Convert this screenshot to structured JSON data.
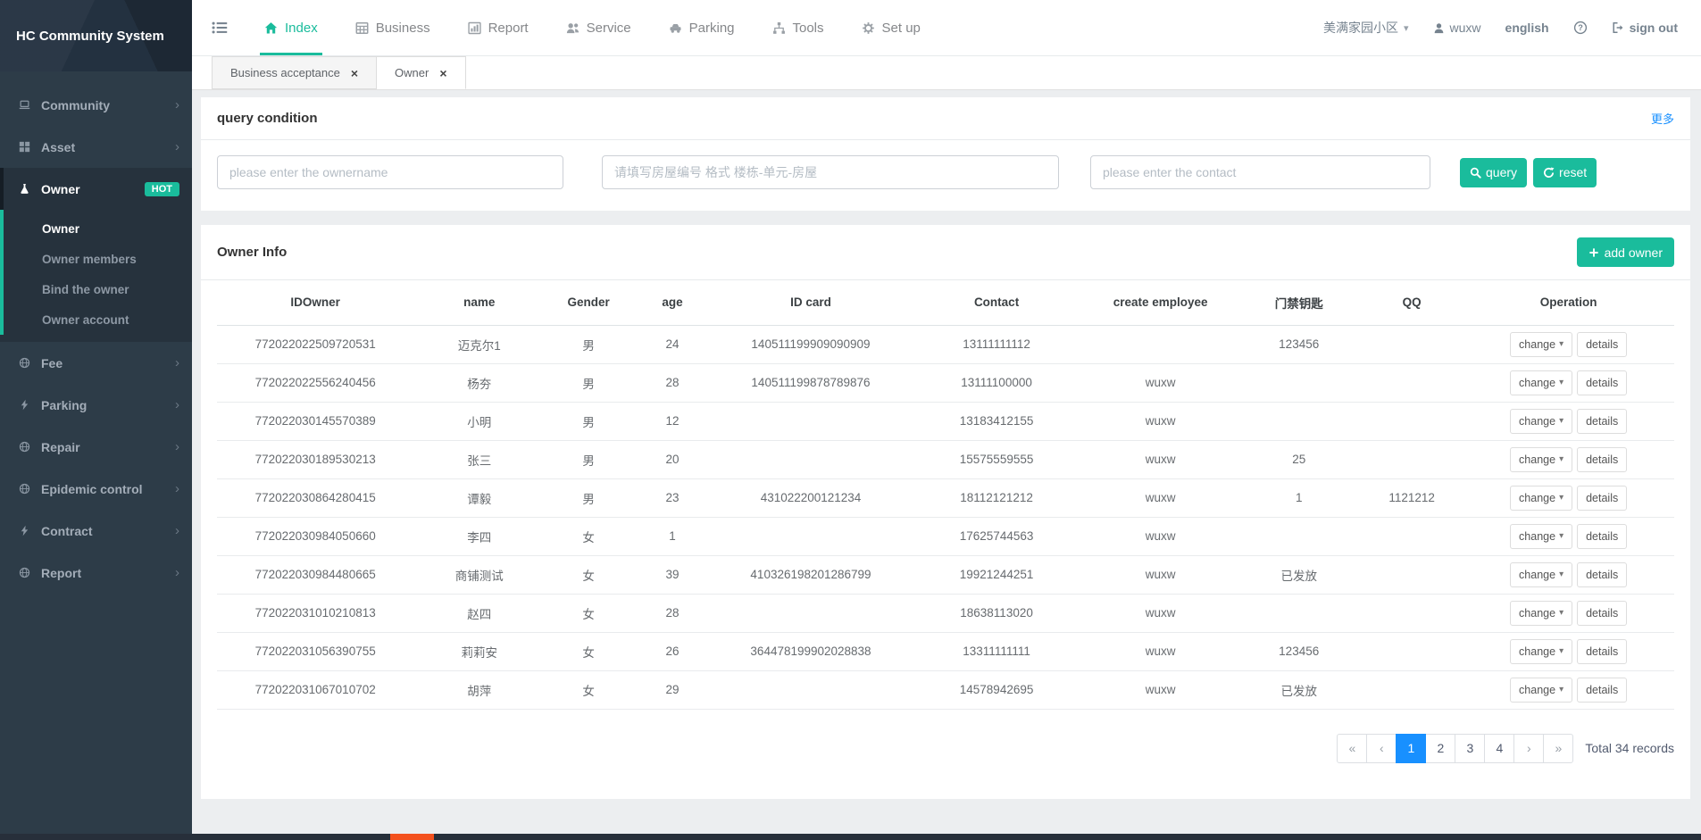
{
  "app": {
    "title": "HC Community System"
  },
  "topnav": {
    "items": [
      {
        "label": "Index",
        "icon": "home-icon",
        "active": true
      },
      {
        "label": "Business",
        "icon": "table-icon",
        "active": false
      },
      {
        "label": "Report",
        "icon": "chart-icon",
        "active": false
      },
      {
        "label": "Service",
        "icon": "users-icon",
        "active": false
      },
      {
        "label": "Parking",
        "icon": "car-icon",
        "active": false
      },
      {
        "label": "Tools",
        "icon": "sitemap-icon",
        "active": false
      },
      {
        "label": "Set up",
        "icon": "gear-icon",
        "active": false
      }
    ],
    "right": {
      "community_name": "美满家园小区",
      "username": "wuxw",
      "language": "english",
      "signout_label": "sign out"
    }
  },
  "tabs": [
    {
      "label": "Business acceptance",
      "active": false
    },
    {
      "label": "Owner",
      "active": true
    }
  ],
  "sidebar": {
    "items": [
      {
        "label": "Community",
        "icon": "laptop-icon",
        "expandable": true
      },
      {
        "label": "Asset",
        "icon": "grid-icon",
        "expandable": true
      },
      {
        "label": "Owner",
        "icon": "flask-icon",
        "badge": "HOT",
        "active": true,
        "children": [
          {
            "label": "Owner",
            "active": true
          },
          {
            "label": "Owner members",
            "active": false
          },
          {
            "label": "Bind the owner",
            "active": false
          },
          {
            "label": "Owner account",
            "active": false
          }
        ]
      },
      {
        "label": "Fee",
        "icon": "globe-icon",
        "expandable": true
      },
      {
        "label": "Parking",
        "icon": "bolt-icon",
        "expandable": true
      },
      {
        "label": "Repair",
        "icon": "globe-icon",
        "expandable": true
      },
      {
        "label": "Epidemic control",
        "icon": "globe-icon",
        "expandable": true
      },
      {
        "label": "Contract",
        "icon": "bolt-icon",
        "expandable": true
      },
      {
        "label": "Report",
        "icon": "globe-icon",
        "expandable": true
      }
    ]
  },
  "query_panel": {
    "title": "query condition",
    "more_link": "更多",
    "inputs": [
      {
        "placeholder": "please enter the ownername"
      },
      {
        "placeholder": "请填写房屋编号 格式 楼栋-单元-房屋"
      },
      {
        "placeholder": "please enter the contact"
      }
    ],
    "query_label": "query",
    "reset_label": "reset"
  },
  "owner_panel": {
    "title": "Owner Info",
    "add_label": "add owner",
    "table": {
      "columns": [
        "IDOwner",
        "name",
        "Gender",
        "age",
        "ID card",
        "Contact",
        "create employee",
        "门禁钥匙",
        "QQ",
        "Operation"
      ],
      "change_label": "change",
      "details_label": "details",
      "rows": [
        [
          "772022022509720531",
          "迈克尔1",
          "男",
          "24",
          "140511199909090909",
          "13111111112",
          "",
          "123456",
          ""
        ],
        [
          "772022022556240456",
          "杨夯",
          "男",
          "28",
          "140511199878789876",
          "13111100000",
          "wuxw",
          "",
          ""
        ],
        [
          "772022030145570389",
          "小明",
          "男",
          "12",
          "",
          "13183412155",
          "wuxw",
          "",
          ""
        ],
        [
          "772022030189530213",
          "张三",
          "男",
          "20",
          "",
          "15575559555",
          "wuxw",
          "25",
          ""
        ],
        [
          "772022030864280415",
          "谭毅",
          "男",
          "23",
          "431022200121234",
          "18112121212",
          "wuxw",
          "1",
          "1121212"
        ],
        [
          "772022030984050660",
          "李四",
          "女",
          "1",
          "",
          "17625744563",
          "wuxw",
          "",
          ""
        ],
        [
          "772022030984480665",
          "商铺测试",
          "女",
          "39",
          "410326198201286799",
          "19921244251",
          "wuxw",
          "已发放",
          ""
        ],
        [
          "772022031010210813",
          "赵四",
          "女",
          "28",
          "",
          "18638113020",
          "wuxw",
          "",
          ""
        ],
        [
          "772022031056390755",
          "莉莉安",
          "女",
          "26",
          "364478199902028838",
          "13311111111",
          "wuxw",
          "123456",
          ""
        ],
        [
          "772022031067010702",
          "胡萍",
          "女",
          "29",
          "",
          "14578942695",
          "wuxw",
          "已发放",
          ""
        ]
      ]
    },
    "pagination": {
      "pages": [
        "«",
        "‹",
        "1",
        "2",
        "3",
        "4",
        "›",
        "»"
      ],
      "active": "1",
      "total_label": "Total 34 records"
    }
  },
  "colors": {
    "accent": "#1abc9c",
    "link_blue": "#1890ff",
    "pager_active": "#1890ff",
    "sidebar_bg": "#2d3c48",
    "bottom_accent": "#f4511e"
  }
}
